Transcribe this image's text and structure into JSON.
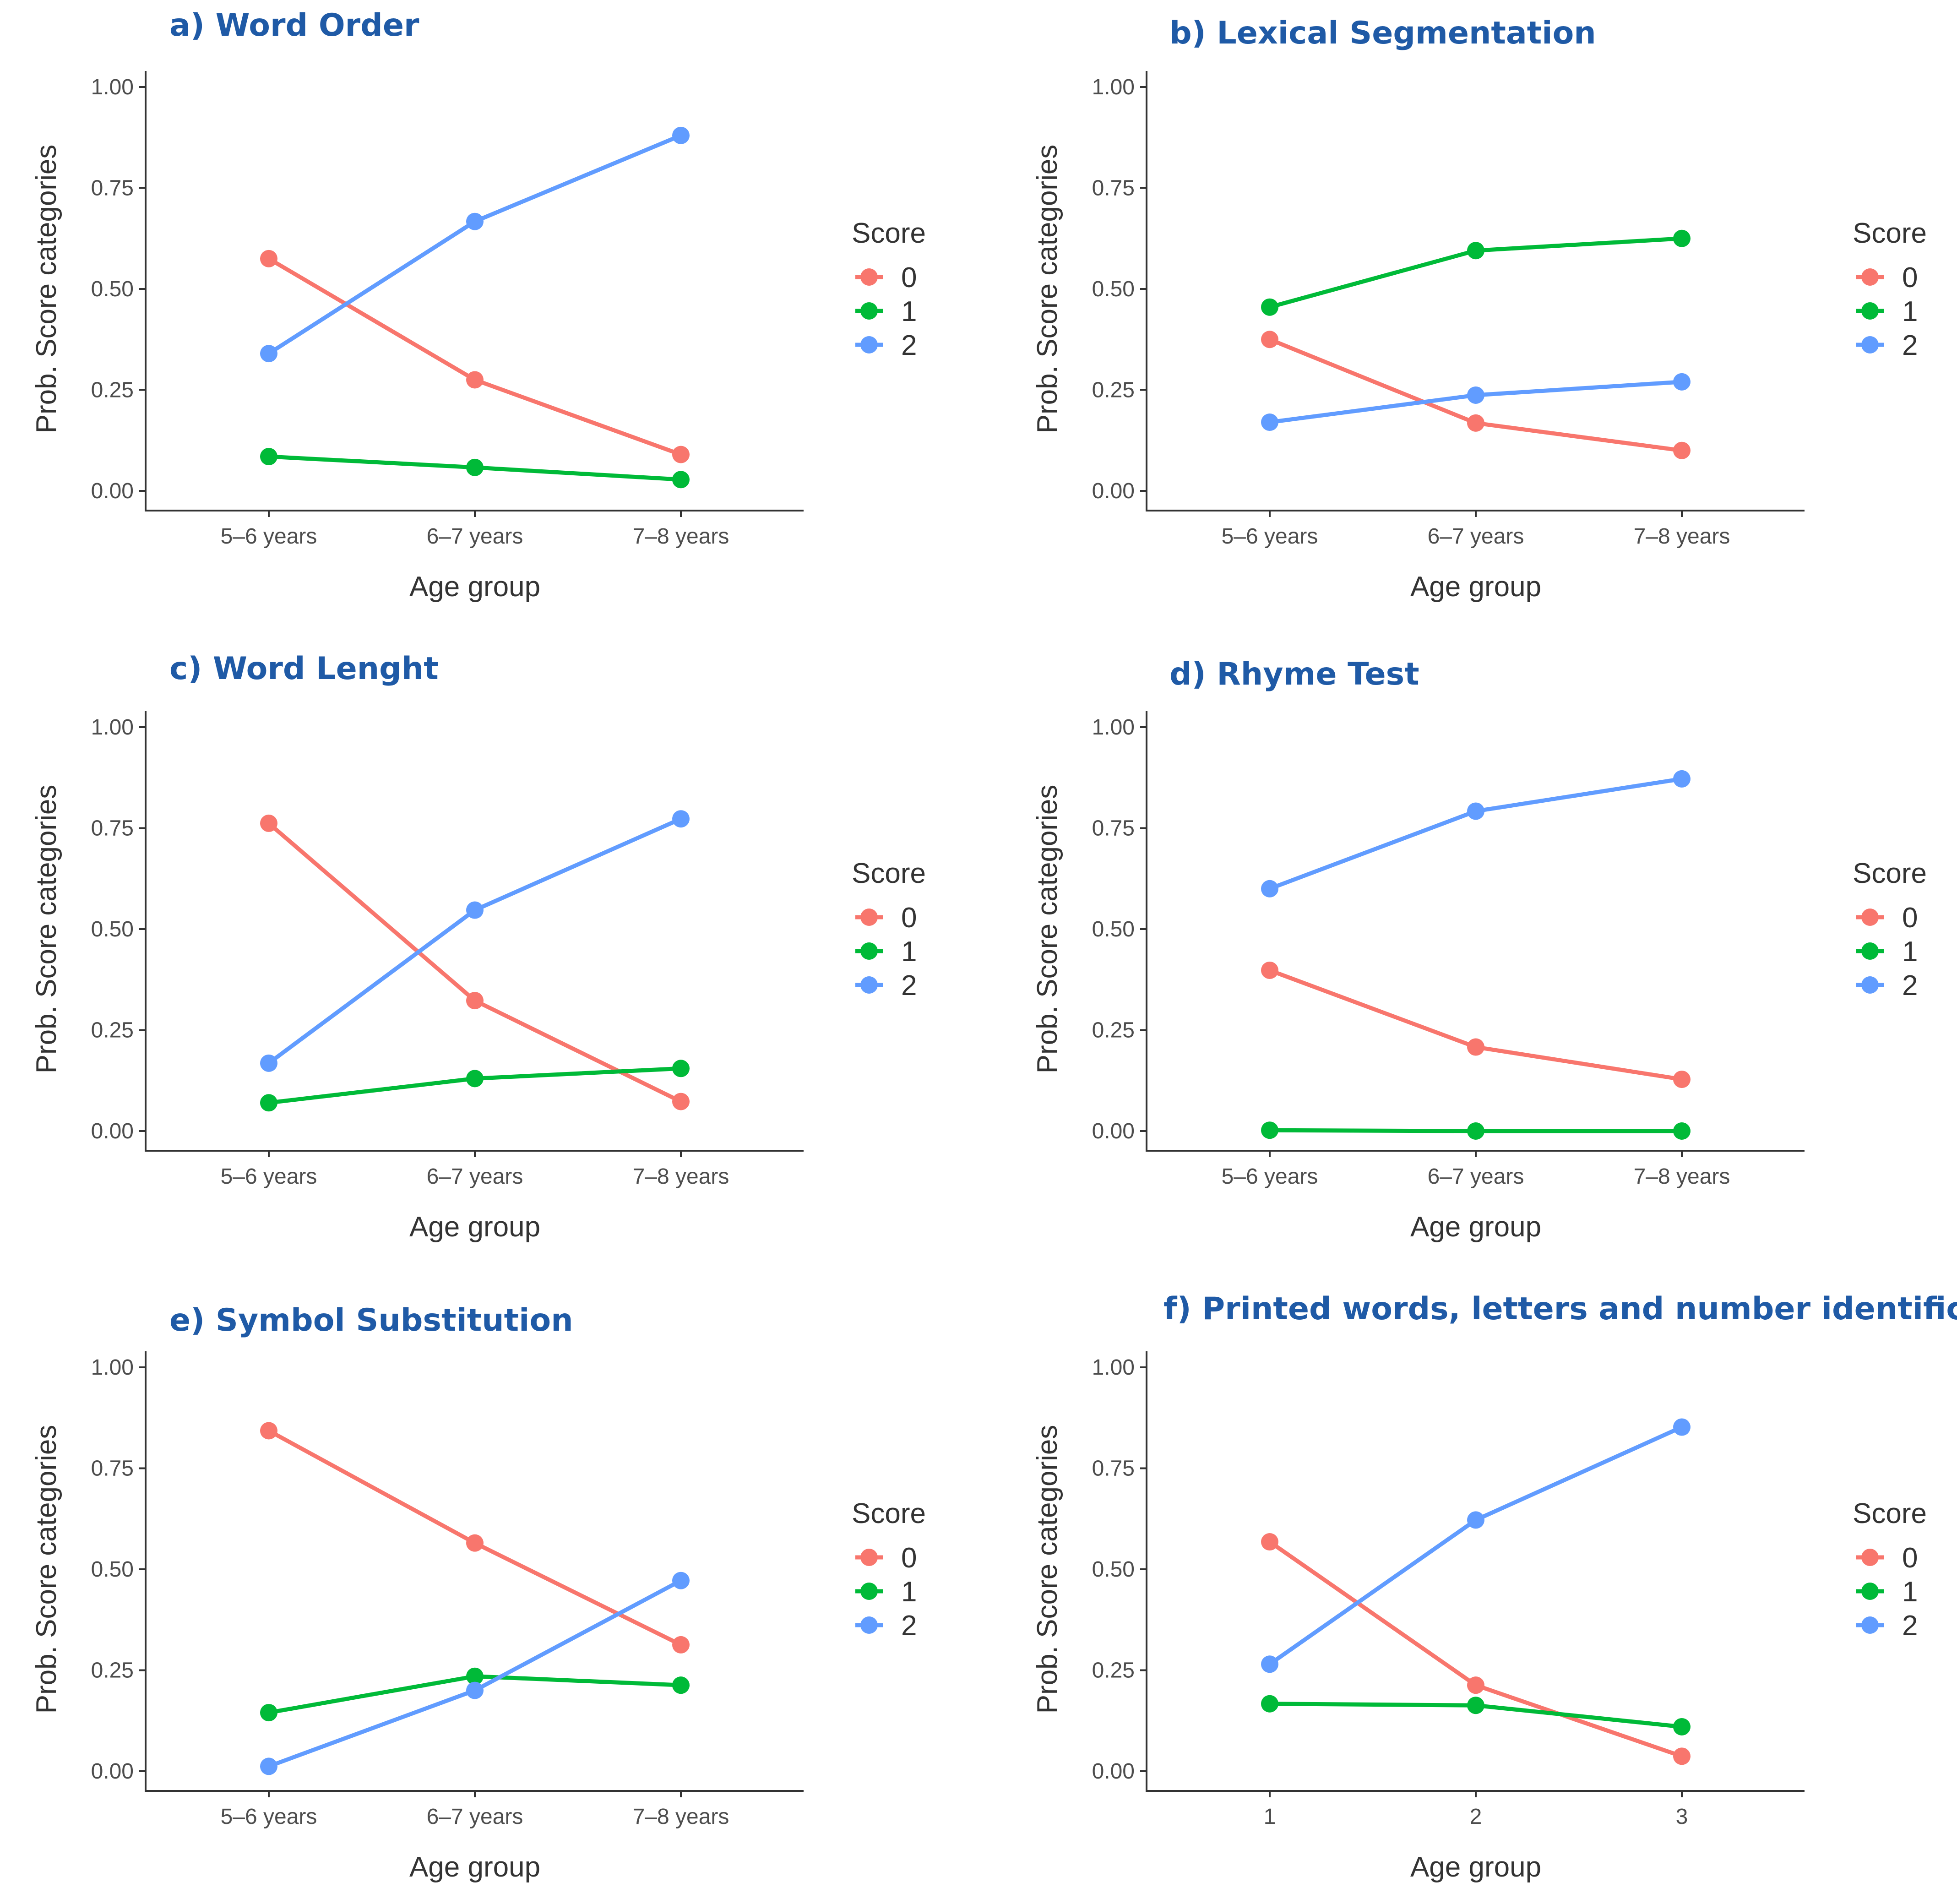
{
  "colors": {
    "0": "#f8766d",
    "1": "#00ba38",
    "2": "#619cff",
    "title": "#1f5aa6"
  },
  "chart_data": [
    {
      "type": "line",
      "title": "a) Word Order",
      "categories": [
        "5–6 years",
        "6–7 years",
        "7–8 years"
      ],
      "xlabel": "Age group",
      "ylabel": "Prob. Score categories",
      "ylim": [
        0,
        1
      ],
      "yticks": [
        "0.00",
        "0.25",
        "0.50",
        "0.75",
        "1.00"
      ],
      "legend_title": "Score",
      "series": [
        {
          "name": "0",
          "values": [
            0.575,
            0.275,
            0.09
          ]
        },
        {
          "name": "1",
          "values": [
            0.085,
            0.058,
            0.028
          ]
        },
        {
          "name": "2",
          "values": [
            0.34,
            0.667,
            0.88
          ]
        }
      ]
    },
    {
      "type": "line",
      "title": "b) Lexical Segmentation",
      "categories": [
        "5–6 years",
        "6–7 years",
        "7–8 years"
      ],
      "xlabel": "Age group",
      "ylabel": "Prob. Score categories",
      "ylim": [
        0,
        1
      ],
      "yticks": [
        "0.00",
        "0.25",
        "0.50",
        "0.75",
        "1.00"
      ],
      "legend_title": "Score",
      "series": [
        {
          "name": "0",
          "values": [
            0.375,
            0.168,
            0.1
          ]
        },
        {
          "name": "1",
          "values": [
            0.455,
            0.595,
            0.625
          ]
        },
        {
          "name": "2",
          "values": [
            0.17,
            0.237,
            0.27
          ]
        }
      ]
    },
    {
      "type": "line",
      "title": "c) Word Lenght",
      "categories": [
        "5–6 years",
        "6–7 years",
        "7–8 years"
      ],
      "xlabel": "Age group",
      "ylabel": "Prob. Score categories",
      "ylim": [
        0,
        1
      ],
      "yticks": [
        "0.00",
        "0.25",
        "0.50",
        "0.75",
        "1.00"
      ],
      "legend_title": "Score",
      "series": [
        {
          "name": "0",
          "values": [
            0.762,
            0.323,
            0.073
          ]
        },
        {
          "name": "1",
          "values": [
            0.07,
            0.13,
            0.155
          ]
        },
        {
          "name": "2",
          "values": [
            0.168,
            0.547,
            0.773
          ]
        }
      ]
    },
    {
      "type": "line",
      "title": "d) Rhyme Test",
      "categories": [
        "5–6 years",
        "6–7 years",
        "7–8 years"
      ],
      "xlabel": "Age group",
      "ylabel": "Prob. Score categories",
      "ylim": [
        0,
        1
      ],
      "yticks": [
        "0.00",
        "0.25",
        "0.50",
        "0.75",
        "1.00"
      ],
      "legend_title": "Score",
      "series": [
        {
          "name": "0",
          "values": [
            0.398,
            0.208,
            0.128
          ]
        },
        {
          "name": "1",
          "values": [
            0.002,
            0.0,
            0.0
          ]
        },
        {
          "name": "2",
          "values": [
            0.6,
            0.792,
            0.872
          ]
        }
      ]
    },
    {
      "type": "line",
      "title": "e) Symbol Substitution",
      "categories": [
        "5–6 years",
        "6–7 years",
        "7–8 years"
      ],
      "xlabel": "Age group",
      "ylabel": "Prob. Score categories",
      "ylim": [
        0,
        1
      ],
      "yticks": [
        "0.00",
        "0.25",
        "0.50",
        "0.75",
        "1.00"
      ],
      "legend_title": "Score",
      "series": [
        {
          "name": "0",
          "values": [
            0.843,
            0.565,
            0.313
          ]
        },
        {
          "name": "1",
          "values": [
            0.145,
            0.235,
            0.213
          ]
        },
        {
          "name": "2",
          "values": [
            0.012,
            0.2,
            0.472
          ]
        }
      ]
    },
    {
      "type": "line",
      "title": "f) Printed words, letters and number identification",
      "categories": [
        "1",
        "2",
        "3"
      ],
      "xlabel": "Age group",
      "ylabel": "Prob. Score categories",
      "ylim": [
        0,
        1
      ],
      "yticks": [
        "0.00",
        "0.25",
        "0.50",
        "0.75",
        "1.00"
      ],
      "legend_title": "Score",
      "series": [
        {
          "name": "0",
          "values": [
            0.568,
            0.213,
            0.037
          ]
        },
        {
          "name": "1",
          "values": [
            0.167,
            0.163,
            0.11
          ]
        },
        {
          "name": "2",
          "values": [
            0.265,
            0.622,
            0.852
          ]
        }
      ]
    }
  ]
}
